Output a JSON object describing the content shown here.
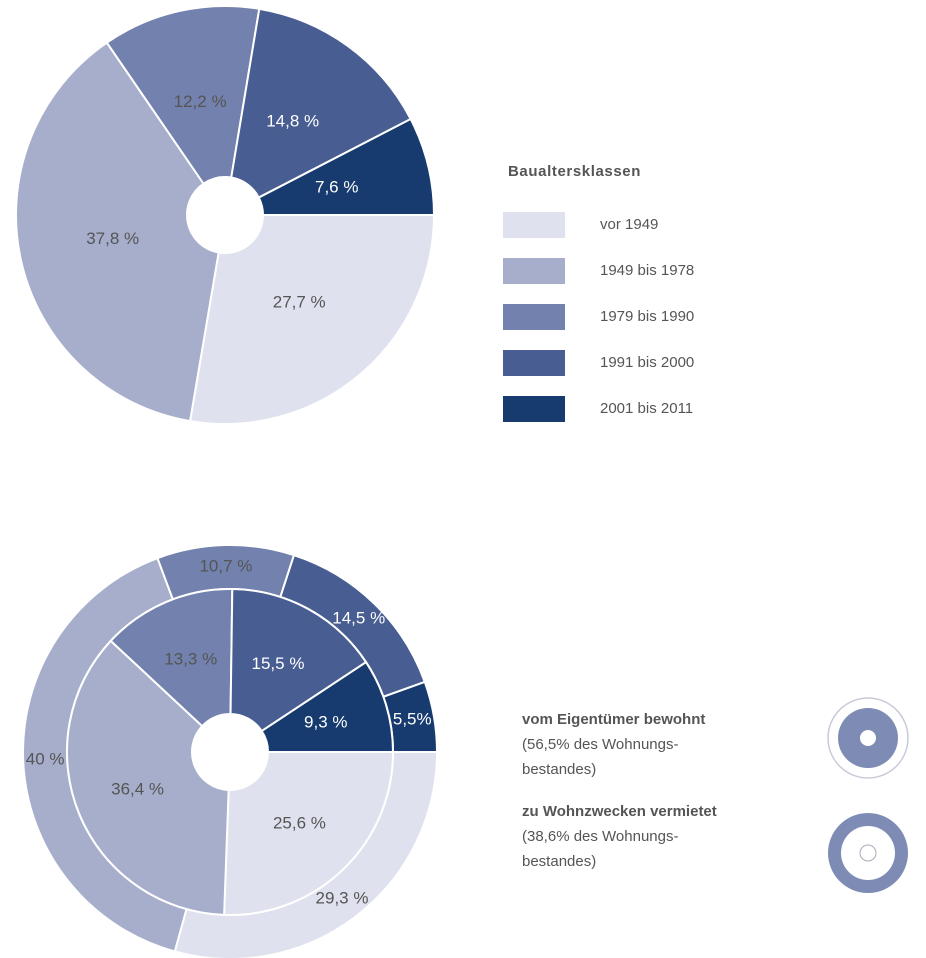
{
  "chart_data": [
    {
      "type": "pie",
      "title": "Baualtersklassen",
      "categories": [
        "vor 1949",
        "1949 bis 1978",
        "1979 bis 1990",
        "1991 bis 2000",
        "2001 bis 2011"
      ],
      "colors": [
        "#dfe2ee",
        "#a7aecb",
        "#7281ad",
        "#485d91",
        "#173a6f"
      ],
      "values": [
        27.7,
        37.8,
        12.2,
        14.8,
        7.6
      ],
      "value_labels": [
        "27,7 %",
        "37,8 %",
        "12,2 %",
        "14,8 %",
        "7,6 %"
      ]
    },
    {
      "type": "nested-donut",
      "series": [
        {
          "name": "vom Eigentümer bewohnt",
          "note": [
            "(56,5% des Wohnungs-",
            "bestandes)"
          ],
          "values": [
            25.6,
            36.4,
            13.3,
            15.5,
            9.3
          ],
          "value_labels": [
            "25,6 %",
            "36,4 %",
            "13,3 %",
            "15,5 %",
            "9,3 %"
          ]
        },
        {
          "name": "zu Wohnzwecken vermietet",
          "note": [
            "(38,6% des Wohnungs-",
            "bestandes)"
          ],
          "values": [
            29.3,
            40,
            10.7,
            14.5,
            5.5
          ],
          "value_labels": [
            "29,3 %",
            "40 %",
            "10,7 %",
            "14,5 %",
            "5,5%"
          ]
        }
      ]
    }
  ]
}
